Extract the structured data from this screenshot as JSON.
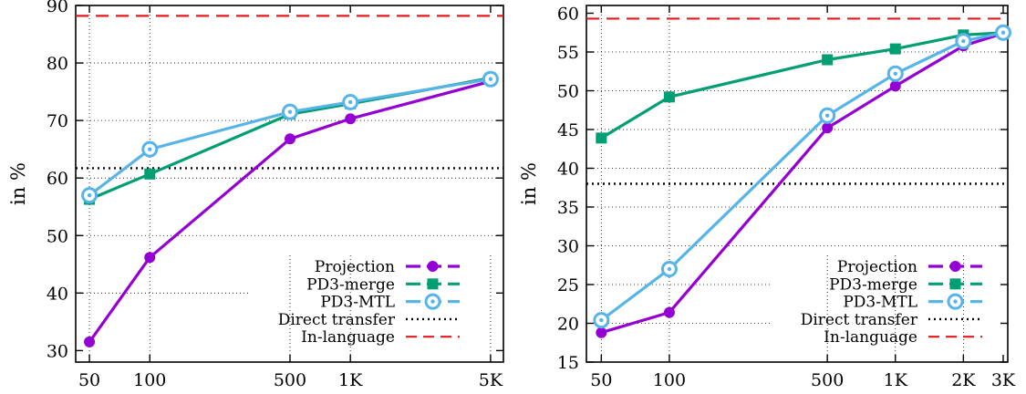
{
  "colors": {
    "projection": "#9400d3",
    "pd3_merge": "#009e73",
    "pd3_mtl": "#56b4e9",
    "direct_transfer": "#000000",
    "in_language": "#e41a1c"
  },
  "chart_data": [
    {
      "type": "line",
      "xscale": "log",
      "ylabel": "in %",
      "ylim": [
        28,
        90
      ],
      "xlim": [
        45,
        5500
      ],
      "grid": true,
      "legend_position": "bottom-right",
      "x": [
        50,
        100,
        500,
        1000,
        5000
      ],
      "x_ticks": [
        50,
        100,
        500,
        1000,
        5000
      ],
      "x_tick_labels": [
        "50",
        "100",
        "500",
        "1K",
        "5K"
      ],
      "y_ticks": [
        30,
        40,
        50,
        60,
        70,
        80,
        90
      ],
      "y_tick_labels": [
        "30",
        "40",
        "50",
        "60",
        "70",
        "80",
        "90"
      ],
      "series": [
        {
          "name": "Projection",
          "key": "projection",
          "marker": "circle",
          "values": [
            31.5,
            46.2,
            66.8,
            70.3,
            76.8
          ]
        },
        {
          "name": "PD3-merge",
          "key": "pd3_merge",
          "marker": "square",
          "values": [
            56.3,
            60.7,
            71.1,
            72.9,
            77.4
          ]
        },
        {
          "name": "PD3-MTL",
          "key": "pd3_mtl",
          "marker": "ring",
          "values": [
            57.0,
            65.0,
            71.5,
            73.2,
            77.2
          ]
        }
      ],
      "reference_lines": [
        {
          "name": "Direct transfer",
          "key": "direct_transfer",
          "style": "dotted",
          "value": 61.7
        },
        {
          "name": "In-language",
          "key": "in_language",
          "style": "dashed",
          "value": 88.2
        }
      ]
    },
    {
      "type": "line",
      "xscale": "log",
      "ylabel": "in %",
      "ylim": [
        15,
        61
      ],
      "xlim": [
        45,
        3000
      ],
      "grid": true,
      "legend_position": "bottom-right",
      "x": [
        50,
        100,
        500,
        1000,
        2000,
        3000
      ],
      "x_ticks": [
        50,
        100,
        500,
        1000,
        2000,
        3000
      ],
      "x_tick_labels": [
        "50",
        "100",
        "500",
        "1K",
        "2K",
        "3K"
      ],
      "y_ticks": [
        15,
        20,
        25,
        30,
        35,
        40,
        45,
        50,
        55,
        60
      ],
      "y_tick_labels": [
        "15",
        "20",
        "25",
        "30",
        "35",
        "40",
        "45",
        "50",
        "55",
        "60"
      ],
      "series": [
        {
          "name": "Projection",
          "key": "projection",
          "marker": "circle",
          "values": [
            18.8,
            21.4,
            45.2,
            50.6,
            55.8,
            57.4
          ]
        },
        {
          "name": "PD3-merge",
          "key": "pd3_merge",
          "marker": "square",
          "values": [
            43.9,
            49.2,
            54.0,
            55.4,
            57.2,
            57.5
          ]
        },
        {
          "name": "PD3-MTL",
          "key": "pd3_mtl",
          "marker": "ring",
          "values": [
            20.4,
            27.0,
            46.8,
            52.2,
            56.4,
            57.5
          ]
        }
      ],
      "reference_lines": [
        {
          "name": "Direct transfer",
          "key": "direct_transfer",
          "style": "dotted",
          "value": 38.0
        },
        {
          "name": "In-language",
          "key": "in_language",
          "style": "dashed",
          "value": 59.3
        }
      ]
    }
  ]
}
